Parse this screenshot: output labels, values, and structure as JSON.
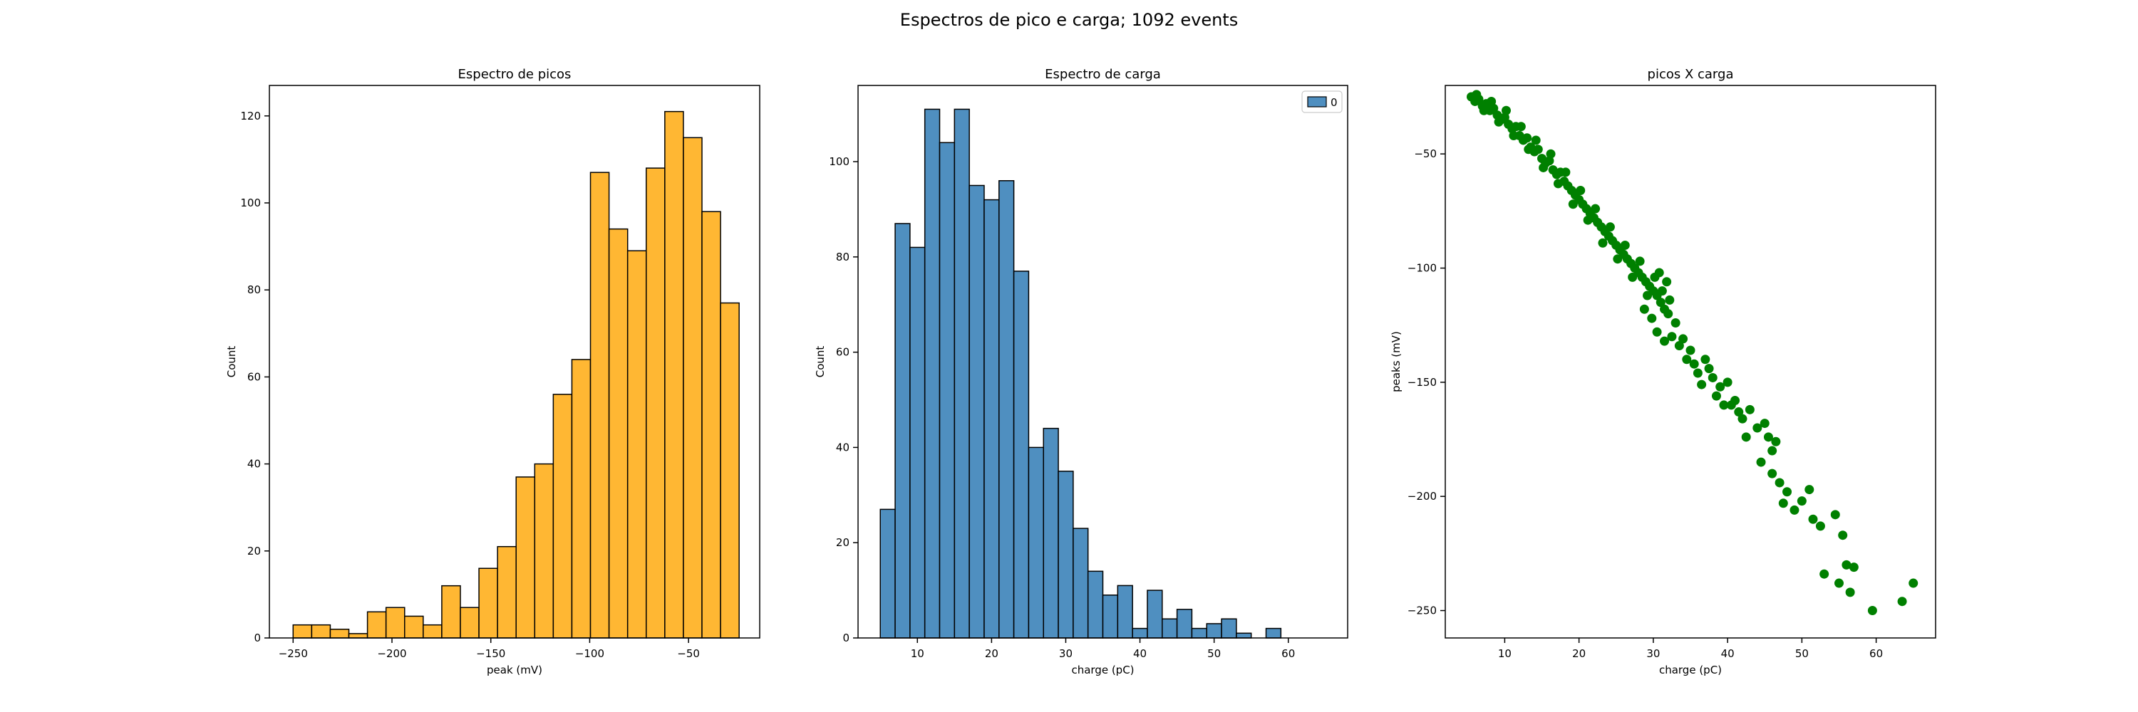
{
  "figure": {
    "suptitle": "Espectros de pico e carga; 1092 events"
  },
  "chart_data": [
    {
      "type": "histogram",
      "title": "Espectro de picos",
      "xlabel": "peak (mV)",
      "ylabel": "Count",
      "color": "#ffb733",
      "edge_color": "#000000",
      "bin_start": -250,
      "bin_width": 9.4,
      "counts": [
        3,
        3,
        2,
        1,
        6,
        7,
        5,
        3,
        12,
        7,
        16,
        21,
        37,
        40,
        56,
        64,
        107,
        94,
        89,
        108,
        121,
        115,
        98,
        77
      ],
      "xlim": [
        -262,
        -14
      ],
      "ylim": [
        0,
        127
      ],
      "xticks": [
        -250,
        -200,
        -150,
        -100,
        -50
      ],
      "xtick_labels": [
        "−250",
        "−200",
        "−150",
        "−100",
        "−50"
      ],
      "yticks": [
        0,
        20,
        40,
        60,
        80,
        100,
        120
      ],
      "ytick_labels": [
        "0",
        "20",
        "40",
        "60",
        "80",
        "100",
        "120"
      ]
    },
    {
      "type": "histogram",
      "title": "Espectro de carga",
      "xlabel": "charge (pC)",
      "ylabel": "Count",
      "color": "#4f8fc0",
      "edge_color": "#000000",
      "bin_start": 5,
      "bin_width": 2.0,
      "counts": [
        27,
        87,
        82,
        111,
        104,
        111,
        95,
        92,
        96,
        77,
        40,
        44,
        35,
        23,
        14,
        9,
        11,
        2,
        10,
        4,
        6,
        2,
        3,
        4,
        1,
        0,
        2
      ],
      "xlim": [
        2,
        68
      ],
      "ylim": [
        0,
        116
      ],
      "legend": {
        "entries": [
          "0"
        ],
        "position": "upper right"
      },
      "xticks": [
        10,
        20,
        30,
        40,
        50,
        60
      ],
      "xtick_labels": [
        "10",
        "20",
        "30",
        "40",
        "50",
        "60"
      ],
      "yticks": [
        0,
        20,
        40,
        60,
        80,
        100
      ],
      "ytick_labels": [
        "0",
        "20",
        "40",
        "60",
        "80",
        "100"
      ]
    },
    {
      "type": "scatter",
      "title": "picos X carga",
      "xlabel": "charge (pC)",
      "ylabel": "peaks (mV)",
      "color": "#008000",
      "xlim": [
        2,
        68
      ],
      "ylim": [
        -262,
        -20
      ],
      "xticks": [
        10,
        20,
        30,
        40,
        50,
        60
      ],
      "xtick_labels": [
        "10",
        "20",
        "30",
        "40",
        "50",
        "60"
      ],
      "yticks": [
        -50,
        -100,
        -150,
        -200,
        -250
      ],
      "ytick_labels": [
        "−50",
        "−100",
        "−150",
        "−200",
        "−250"
      ],
      "points": [
        [
          5.5,
          -25
        ],
        [
          6.0,
          -27
        ],
        [
          6.5,
          -26
        ],
        [
          7.0,
          -29
        ],
        [
          7.5,
          -28
        ],
        [
          8.0,
          -31
        ],
        [
          8.5,
          -30
        ],
        [
          9.0,
          -33
        ],
        [
          9.5,
          -35
        ],
        [
          10.0,
          -34
        ],
        [
          10.5,
          -37
        ],
        [
          11.0,
          -39
        ],
        [
          11.5,
          -38
        ],
        [
          12.0,
          -42
        ],
        [
          12.5,
          -44
        ],
        [
          13.0,
          -43
        ],
        [
          13.5,
          -47
        ],
        [
          14.0,
          -49
        ],
        [
          14.5,
          -48
        ],
        [
          15.0,
          -52
        ],
        [
          15.5,
          -54
        ],
        [
          16.0,
          -53
        ],
        [
          16.5,
          -57
        ],
        [
          17.0,
          -59
        ],
        [
          17.5,
          -58
        ],
        [
          18.0,
          -62
        ],
        [
          18.5,
          -64
        ],
        [
          19.0,
          -66
        ],
        [
          19.5,
          -68
        ],
        [
          20.0,
          -70
        ],
        [
          20.5,
          -72
        ],
        [
          21.0,
          -74
        ],
        [
          21.5,
          -76
        ],
        [
          22.0,
          -78
        ],
        [
          22.5,
          -80
        ],
        [
          23.0,
          -82
        ],
        [
          23.5,
          -84
        ],
        [
          24.0,
          -86
        ],
        [
          24.5,
          -88
        ],
        [
          25.0,
          -90
        ],
        [
          25.5,
          -92
        ],
        [
          26.0,
          -94
        ],
        [
          26.5,
          -96
        ],
        [
          27.0,
          -98
        ],
        [
          27.5,
          -100
        ],
        [
          28.0,
          -102
        ],
        [
          28.5,
          -104
        ],
        [
          29.0,
          -106
        ],
        [
          29.5,
          -108
        ],
        [
          30.0,
          -110
        ],
        [
          30.5,
          -112
        ],
        [
          31.0,
          -115
        ],
        [
          31.5,
          -118
        ],
        [
          32.0,
          -120
        ],
        [
          6.2,
          -24
        ],
        [
          7.2,
          -31
        ],
        [
          8.2,
          -27
        ],
        [
          9.2,
          -36
        ],
        [
          10.2,
          -31
        ],
        [
          11.2,
          -42
        ],
        [
          12.2,
          -38
        ],
        [
          13.2,
          -48
        ],
        [
          14.2,
          -44
        ],
        [
          15.2,
          -56
        ],
        [
          16.2,
          -50
        ],
        [
          17.2,
          -63
        ],
        [
          18.2,
          -58
        ],
        [
          19.2,
          -72
        ],
        [
          20.2,
          -66
        ],
        [
          21.2,
          -79
        ],
        [
          22.2,
          -74
        ],
        [
          23.2,
          -89
        ],
        [
          24.2,
          -82
        ],
        [
          25.2,
          -96
        ],
        [
          26.2,
          -90
        ],
        [
          27.2,
          -104
        ],
        [
          28.2,
          -97
        ],
        [
          29.2,
          -112
        ],
        [
          30.2,
          -104
        ],
        [
          31.2,
          -110
        ],
        [
          32.2,
          -114
        ],
        [
          30.8,
          -102
        ],
        [
          31.8,
          -106
        ],
        [
          28.8,
          -118
        ],
        [
          29.8,
          -122
        ],
        [
          30.5,
          -128
        ],
        [
          31.5,
          -132
        ],
        [
          32.5,
          -130
        ],
        [
          33.0,
          -124
        ],
        [
          33.5,
          -134
        ],
        [
          34.0,
          -131
        ],
        [
          35.0,
          -136
        ],
        [
          34.5,
          -140
        ],
        [
          35.5,
          -142
        ],
        [
          36.0,
          -146
        ],
        [
          37.0,
          -140
        ],
        [
          37.5,
          -144
        ],
        [
          36.5,
          -151
        ],
        [
          38.0,
          -148
        ],
        [
          39.0,
          -152
        ],
        [
          38.5,
          -156
        ],
        [
          40.0,
          -150
        ],
        [
          40.5,
          -160
        ],
        [
          41.5,
          -163
        ],
        [
          42.0,
          -166
        ],
        [
          43.0,
          -162
        ],
        [
          44.0,
          -170
        ],
        [
          45.0,
          -168
        ],
        [
          45.5,
          -174
        ],
        [
          46.0,
          -180
        ],
        [
          46.5,
          -176
        ],
        [
          44.5,
          -185
        ],
        [
          46.0,
          -190
        ],
        [
          47.0,
          -194
        ],
        [
          48.0,
          -198
        ],
        [
          49.0,
          -206
        ],
        [
          50.0,
          -202
        ],
        [
          51.0,
          -197
        ],
        [
          51.5,
          -210
        ],
        [
          52.5,
          -213
        ],
        [
          53.0,
          -234
        ],
        [
          54.5,
          -208
        ],
        [
          55.5,
          -217
        ],
        [
          56.0,
          -230
        ],
        [
          56.5,
          -242
        ],
        [
          57.0,
          -231
        ],
        [
          59.5,
          -250
        ],
        [
          63.5,
          -246
        ],
        [
          65.0,
          -238
        ],
        [
          55.0,
          -238
        ],
        [
          47.5,
          -203
        ],
        [
          42.5,
          -174
        ],
        [
          39.5,
          -160
        ],
        [
          41.0,
          -158
        ]
      ]
    }
  ]
}
